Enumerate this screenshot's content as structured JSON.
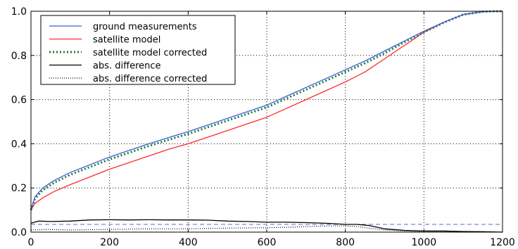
{
  "chart_data": {
    "type": "line",
    "xlim": [
      0,
      1200
    ],
    "ylim": [
      0.0,
      1.0
    ],
    "x_ticks": [
      0,
      200,
      400,
      600,
      800,
      1000,
      1200
    ],
    "y_ticks": [
      0.0,
      0.2,
      0.4,
      0.6,
      0.8,
      1.0
    ],
    "x_tick_labels": [
      "0",
      "200",
      "400",
      "600",
      "800",
      "1000",
      "1200"
    ],
    "y_tick_labels": [
      "0.0",
      "0.2",
      "0.4",
      "0.6",
      "0.8",
      "1.0"
    ],
    "grid": true,
    "grid_style": "dotted",
    "legend_position": "top-left",
    "reference_line": {
      "y": 0.035,
      "color": "#4a6fe3",
      "style": "dashed"
    },
    "series": [
      {
        "name": "ground measurements",
        "color": "#3a5fdc",
        "style": "solid",
        "x": [
          0,
          10,
          30,
          60,
          100,
          150,
          200,
          250,
          300,
          350,
          400,
          450,
          500,
          550,
          600,
          650,
          700,
          750,
          800,
          850,
          900,
          950,
          1000,
          1050,
          1100,
          1150,
          1180,
          1200
        ],
        "y": [
          0.1,
          0.16,
          0.2,
          0.235,
          0.27,
          0.305,
          0.34,
          0.37,
          0.4,
          0.428,
          0.455,
          0.485,
          0.515,
          0.545,
          0.575,
          0.615,
          0.655,
          0.695,
          0.735,
          0.775,
          0.82,
          0.865,
          0.91,
          0.95,
          0.985,
          0.998,
          1.0,
          1.0
        ]
      },
      {
        "name": "satellite model",
        "color": "#ff2a2a",
        "style": "solid",
        "x": [
          0,
          10,
          30,
          60,
          100,
          150,
          200,
          250,
          300,
          350,
          400,
          450,
          500,
          550,
          600,
          650,
          700,
          750,
          800,
          850,
          900,
          950,
          1000,
          1050,
          1100,
          1150,
          1180,
          1200
        ],
        "y": [
          0.1,
          0.13,
          0.155,
          0.185,
          0.215,
          0.25,
          0.285,
          0.315,
          0.345,
          0.375,
          0.4,
          0.43,
          0.46,
          0.49,
          0.52,
          0.56,
          0.6,
          0.64,
          0.68,
          0.725,
          0.785,
          0.845,
          0.905,
          0.95,
          0.985,
          0.998,
          1.0,
          1.0
        ]
      },
      {
        "name": "satellite model corrected",
        "color": "#1e7a3c",
        "style": "thick-dotted",
        "x": [
          0,
          10,
          30,
          60,
          100,
          150,
          200,
          250,
          300,
          350,
          400,
          450,
          500,
          550,
          600,
          650,
          700,
          750,
          800,
          850,
          900,
          950,
          1000,
          1050,
          1100,
          1150,
          1180,
          1200
        ],
        "y": [
          0.1,
          0.15,
          0.19,
          0.225,
          0.26,
          0.295,
          0.33,
          0.36,
          0.39,
          0.418,
          0.445,
          0.475,
          0.505,
          0.535,
          0.565,
          0.605,
          0.645,
          0.685,
          0.725,
          0.765,
          0.81,
          0.86,
          0.905,
          0.948,
          0.985,
          0.998,
          1.0,
          1.0
        ]
      },
      {
        "name": "abs. difference",
        "color": "#000000",
        "style": "solid",
        "x": [
          0,
          20,
          50,
          100,
          150,
          200,
          250,
          300,
          350,
          400,
          450,
          500,
          550,
          600,
          650,
          700,
          750,
          800,
          830,
          860,
          900,
          950,
          1000,
          1050,
          1100,
          1150,
          1200
        ],
        "y": [
          0.04,
          0.05,
          0.048,
          0.05,
          0.055,
          0.056,
          0.055,
          0.056,
          0.055,
          0.055,
          0.054,
          0.05,
          0.048,
          0.045,
          0.045,
          0.043,
          0.04,
          0.035,
          0.035,
          0.03,
          0.015,
          0.008,
          0.005,
          0.005,
          0.003,
          0.002,
          0.0
        ]
      },
      {
        "name": "abs. difference corrected",
        "color": "#000000",
        "style": "dotted",
        "x": [
          0,
          50,
          100,
          200,
          300,
          400,
          500,
          600,
          650,
          700,
          750,
          800,
          830,
          850,
          900,
          950,
          1000,
          1100,
          1200
        ],
        "y": [
          0.01,
          0.012,
          0.01,
          0.012,
          0.015,
          0.015,
          0.018,
          0.02,
          0.022,
          0.025,
          0.028,
          0.028,
          0.025,
          0.02,
          0.01,
          0.005,
          0.003,
          0.002,
          0.0
        ]
      }
    ]
  }
}
